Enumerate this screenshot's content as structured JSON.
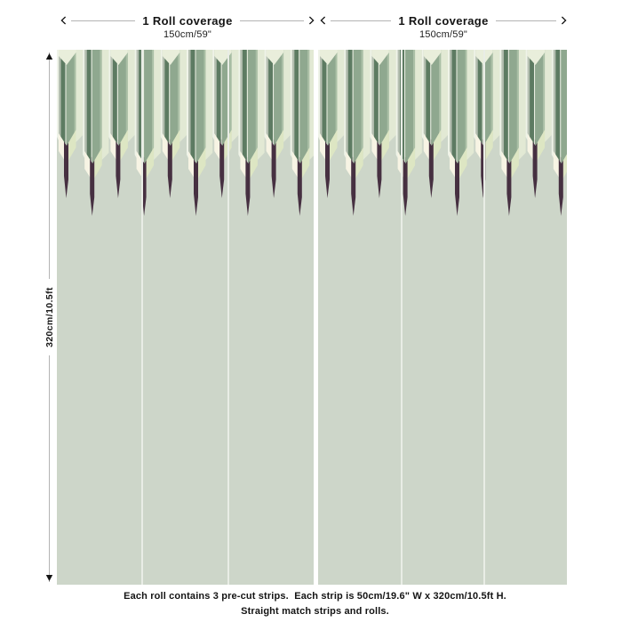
{
  "top_measures": [
    {
      "label": "1 Roll coverage",
      "size": "150cm/59\""
    },
    {
      "label": "1 Roll coverage",
      "size": "150cm/59\""
    }
  ],
  "side_measure": {
    "label": "320cm/10.5ft"
  },
  "caption": {
    "line1": "Each roll contains 3 pre-cut strips.  Each strip is 50cm/19.6\" W x 320cm/10.5ft H.",
    "line2": "Straight match strips and rolls."
  },
  "wallpaper": {
    "rolls": 2,
    "strips_per_roll": 3,
    "colors": {
      "base": "#cdd6c9",
      "gapWhite": "#eff3e8",
      "paleGreen": "#e2e9d4",
      "cream": "#f7f4e4",
      "chartreuse": "#dde6c3",
      "plum": "#463041",
      "gray": "#b5bfb1",
      "darkGreen": "#5d7b62",
      "lightLine": "#eef2e6",
      "sage": "#8fa88f",
      "lightSage": "#aabfa5",
      "capPale": "#e9eedb",
      "separator": "#e9ede6",
      "rollGap": "#ffffff",
      "measureLine": "#b3b3b3",
      "text": "#141414"
    }
  }
}
